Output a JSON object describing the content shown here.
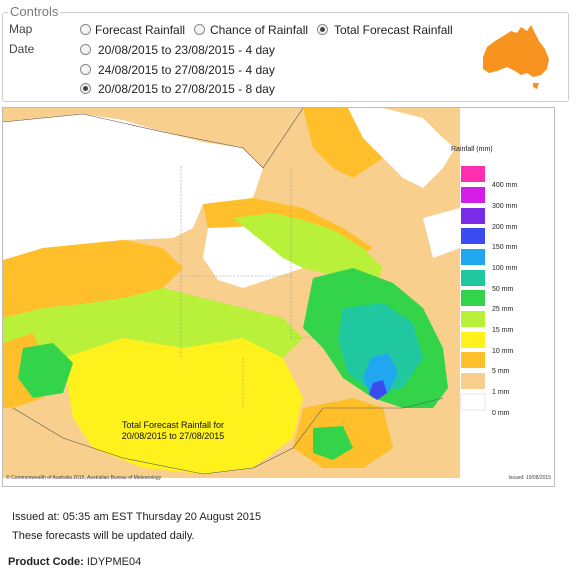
{
  "controls": {
    "legend": "Controls",
    "map_label": "Map",
    "date_label": "Date",
    "map_options": [
      {
        "label": "Forecast Rainfall",
        "checked": false
      },
      {
        "label": "Chance of Rainfall",
        "checked": false
      },
      {
        "label": "Total Forecast Rainfall",
        "checked": true
      }
    ],
    "date_options": [
      {
        "label": "20/08/2015 to 23/08/2015 - 4 day",
        "checked": false
      },
      {
        "label": "24/08/2015 to 27/08/2015 - 4 day",
        "checked": false
      },
      {
        "label": "20/08/2015 to 27/08/2015 - 8 day",
        "checked": true
      }
    ],
    "australia_icon_color": "#f7931e"
  },
  "map": {
    "scale_title": "Rainfall (mm)",
    "scale": [
      {
        "label": "400 mm",
        "color": "#ff2fb0"
      },
      {
        "label": "300 mm",
        "color": "#d41ee8"
      },
      {
        "label": "200 mm",
        "color": "#7a2be8"
      },
      {
        "label": "150 mm",
        "color": "#3a4cf0"
      },
      {
        "label": "100 mm",
        "color": "#21a6f0"
      },
      {
        "label": "50 mm",
        "color": "#20c8a0"
      },
      {
        "label": "25 mm",
        "color": "#34d44a"
      },
      {
        "label": "15 mm",
        "color": "#b8f03a"
      },
      {
        "label": "10 mm",
        "color": "#fff21c"
      },
      {
        "label": "5 mm",
        "color": "#ffbf2a"
      },
      {
        "label": "1 mm",
        "color": "#f9cf8e"
      },
      {
        "label": "0 mm",
        "color": "#ffffff"
      }
    ],
    "caption_line1": "Total Forecast Rainfall for",
    "caption_line2": "20/08/2015 to 27/08/2015",
    "copyright": "© Commonwealth of Australia 2015, Australian Bureau of Meteorology",
    "issued_small": "Issued: 19/08/2015"
  },
  "info": {
    "issued": "Issued at: 05:35 am EST Thursday 20 August 2015",
    "updated": "These forecasts will be updated daily.",
    "product_label": "Product Code:",
    "product_code": "IDYPME04"
  }
}
